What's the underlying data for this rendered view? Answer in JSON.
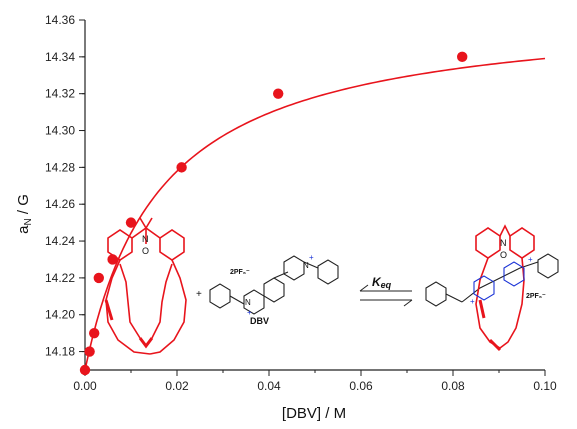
{
  "chart_data": {
    "type": "scatter",
    "xlabel": "[DBV] / M",
    "ylabel_main": "a",
    "ylabel_sub": "N",
    "ylabel_unit": " / G",
    "xlim": [
      0.0,
      0.1
    ],
    "ylim": [
      14.17,
      14.36
    ],
    "x_ticks": [
      0.0,
      0.02,
      0.04,
      0.06,
      0.08,
      0.1
    ],
    "x_tick_labels": [
      "0.00",
      "0.02",
      "0.04",
      "0.06",
      "0.08",
      "0.10"
    ],
    "y_ticks": [
      14.18,
      14.2,
      14.22,
      14.24,
      14.26,
      14.28,
      14.3,
      14.32,
      14.34,
      14.36
    ],
    "y_tick_labels": [
      "14.18",
      "14.20",
      "14.22",
      "14.24",
      "14.26",
      "14.28",
      "14.30",
      "14.32",
      "14.34",
      "14.36"
    ],
    "grid": false,
    "series": [
      {
        "points": [
          [
            0.0,
            14.17
          ],
          [
            0.001,
            14.18
          ],
          [
            0.002,
            14.19
          ],
          [
            0.003,
            14.22
          ],
          [
            0.006,
            14.23
          ],
          [
            0.01,
            14.25
          ],
          [
            0.021,
            14.28
          ],
          [
            0.042,
            14.32
          ],
          [
            0.082,
            14.34
          ]
        ],
        "color": "#e8141c"
      }
    ],
    "fit_curve": {
      "model": "binding isotherm",
      "a0": 14.17,
      "delta_max": 0.197,
      "k": 0.0165,
      "x_range": [
        0.0,
        0.1
      ],
      "color": "#e8141c"
    }
  },
  "scheme": {
    "host_left": {
      "atom_N": "N",
      "atom_O": "O"
    },
    "plus_sign": "+",
    "counter_ion_left": "2PF₆⁻",
    "guest_label": "DBV",
    "guest_N1": "N",
    "guest_N2": "N",
    "guest_charge": "+",
    "eq_symbol": "K",
    "eq_sub": "eq",
    "complex": {
      "atom_N": "N",
      "atom_O": "O",
      "counter_ion": "2PF₆⁻",
      "charge": "+"
    },
    "colors": {
      "host": "#e8141c",
      "guest_charge": "#1a33d6",
      "text": "#111111"
    }
  }
}
